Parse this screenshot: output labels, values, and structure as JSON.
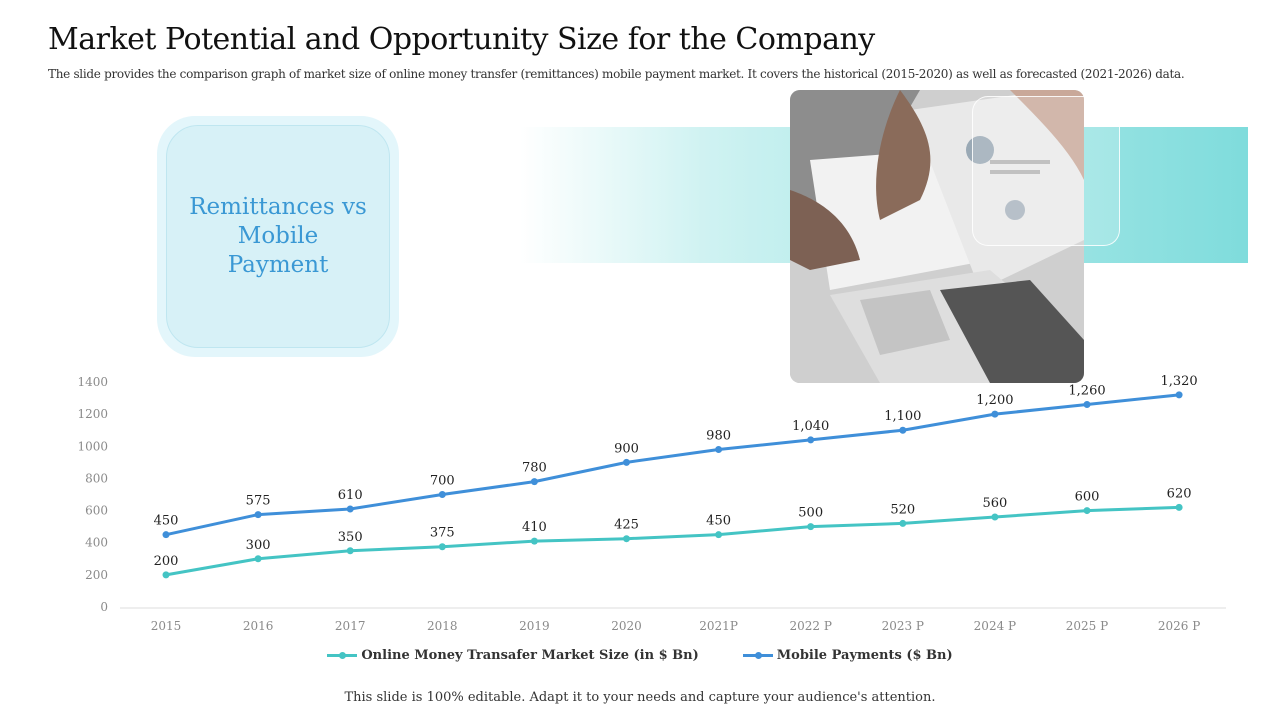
{
  "slide": {
    "title": "Market Potential and Opportunity Size for the Company",
    "subtitle": "The slide provides the comparison graph of market size of online money transfer (remittances) mobile payment market. It covers the historical (2015-2020) as well as forecasted (2021-2026) data.",
    "callout": "Remittances vs Mobile Payment",
    "footer": "This slide is 100% editable. Adapt it to your needs and capture your audience's attention.",
    "colors": {
      "remittance": "#44c4c4",
      "mobile": "#3f8fd9",
      "band": "#7fdcdc",
      "callout_text": "#3a98d4"
    }
  },
  "chart_data": {
    "type": "line",
    "categories": [
      "2015",
      "2016",
      "2017",
      "2018",
      "2019",
      "2020",
      "2021P",
      "2022 P",
      "2023 P",
      "2024 P",
      "2025 P",
      "2026 P"
    ],
    "yticks": [
      "0",
      "200",
      "400",
      "600",
      "800",
      "1000",
      "1200",
      "1400"
    ],
    "ylim": [
      0,
      1400
    ],
    "grid": false,
    "legend_position": "bottom",
    "series": [
      {
        "name": "Online Money Transafer Market Size (in $ Bn)",
        "color": "#44c4c4",
        "values": [
          200,
          300,
          350,
          375,
          410,
          425,
          450,
          500,
          520,
          560,
          600,
          620
        ],
        "labels": [
          "200",
          "300",
          "350",
          "375",
          "410",
          "425",
          "450",
          "500",
          "520",
          "560",
          "600",
          "620"
        ]
      },
      {
        "name": "Mobile Payments ($ Bn)",
        "color": "#3f8fd9",
        "values": [
          450,
          575,
          610,
          700,
          780,
          900,
          980,
          1040,
          1100,
          1200,
          1260,
          1320
        ],
        "labels": [
          "450",
          "575",
          "610",
          "700",
          "780",
          "900",
          "980",
          "1,040",
          "1,100",
          "1,200",
          "1,260",
          "1,320"
        ]
      }
    ]
  }
}
